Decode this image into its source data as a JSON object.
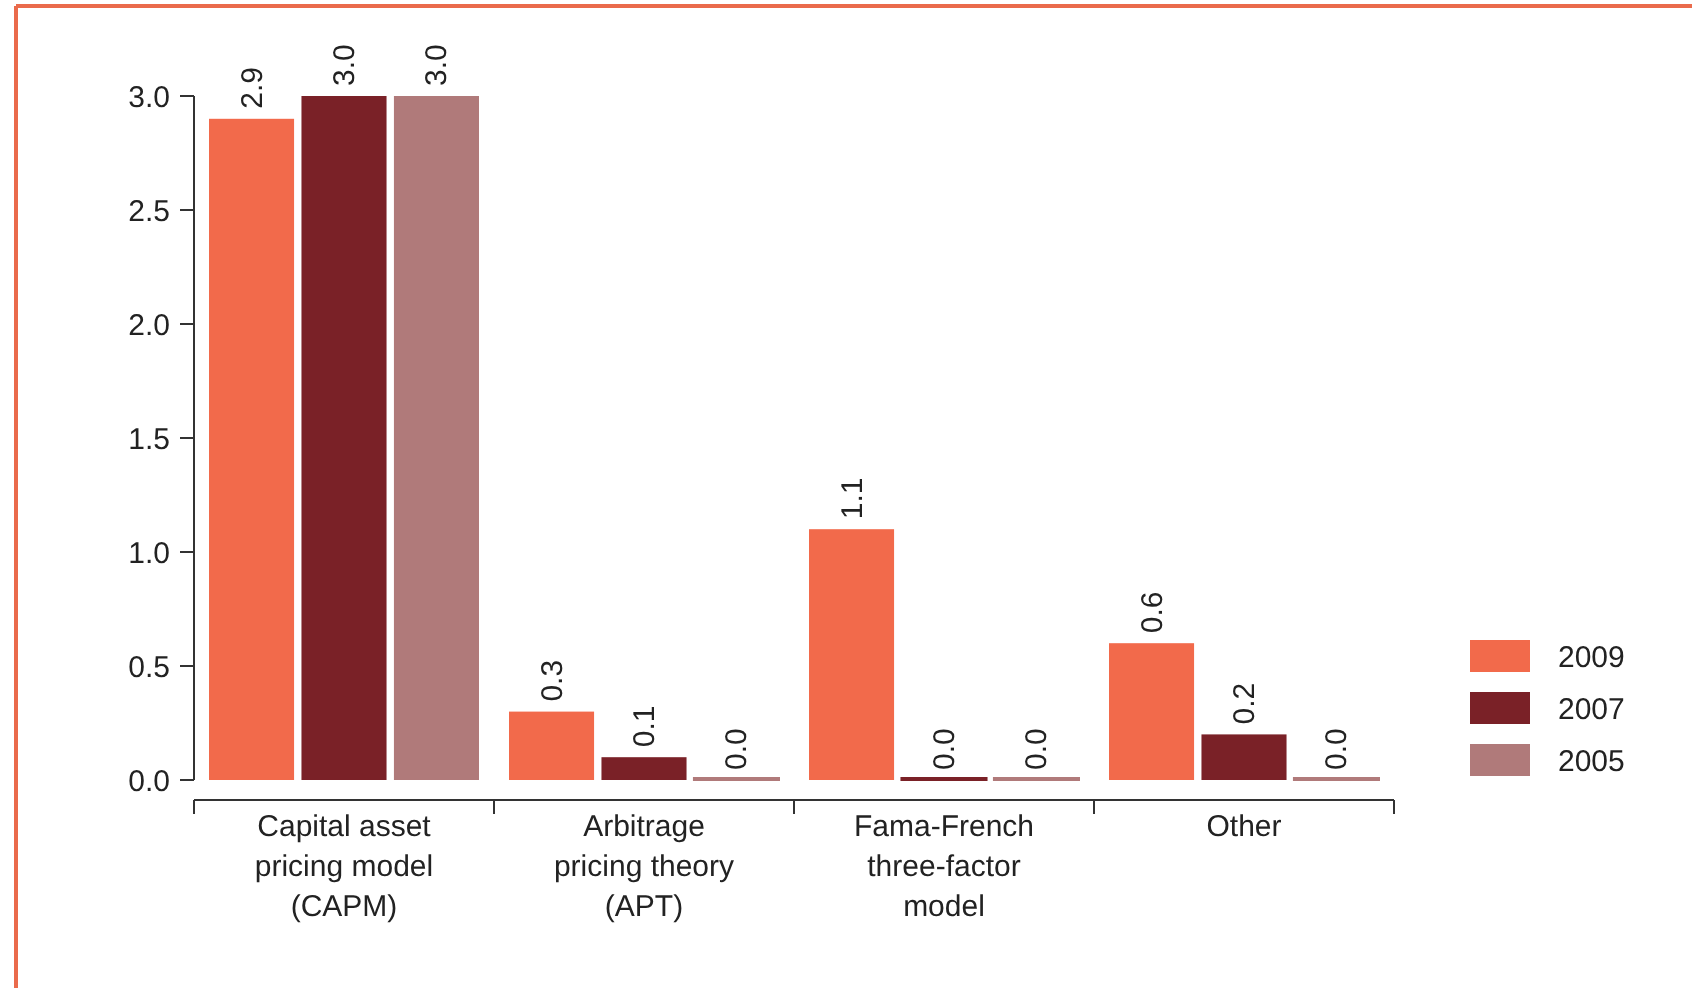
{
  "chart_data": {
    "type": "bar",
    "categories": [
      "Capital asset pricing model (CAPM)",
      "Arbitrage pricing theory (APT)",
      "Fama-French three-factor model",
      "Other"
    ],
    "series": [
      {
        "name": "2009",
        "color": "#f26a4b",
        "values": [
          2.9,
          0.3,
          1.1,
          0.6
        ],
        "value_labels": [
          "2.9",
          "0.3",
          "1.1",
          "0.6"
        ]
      },
      {
        "name": "2007",
        "color": "#7a2127",
        "values": [
          3.0,
          0.1,
          0.0,
          0.2
        ],
        "value_labels": [
          "3.0",
          "0.1",
          "0.0",
          "0.2"
        ]
      },
      {
        "name": "2005",
        "color": "#b07a7a",
        "values": [
          3.0,
          0.0,
          0.0,
          0.0
        ],
        "value_labels": [
          "3.0",
          "0.0",
          "0.0",
          "0.0"
        ]
      }
    ],
    "ylim": [
      0,
      3
    ],
    "yticks": [
      {
        "value": 0,
        "label": "0.0"
      },
      {
        "value": 0.5,
        "label": "0.5"
      },
      {
        "value": 1,
        "label": "1.0"
      },
      {
        "value": 1.5,
        "label": "1.5"
      },
      {
        "value": 2,
        "label": "2.0"
      },
      {
        "value": 2.5,
        "label": "2.5"
      },
      {
        "value": 3,
        "label": "3.0"
      }
    ],
    "grid": false,
    "legend": "right"
  }
}
